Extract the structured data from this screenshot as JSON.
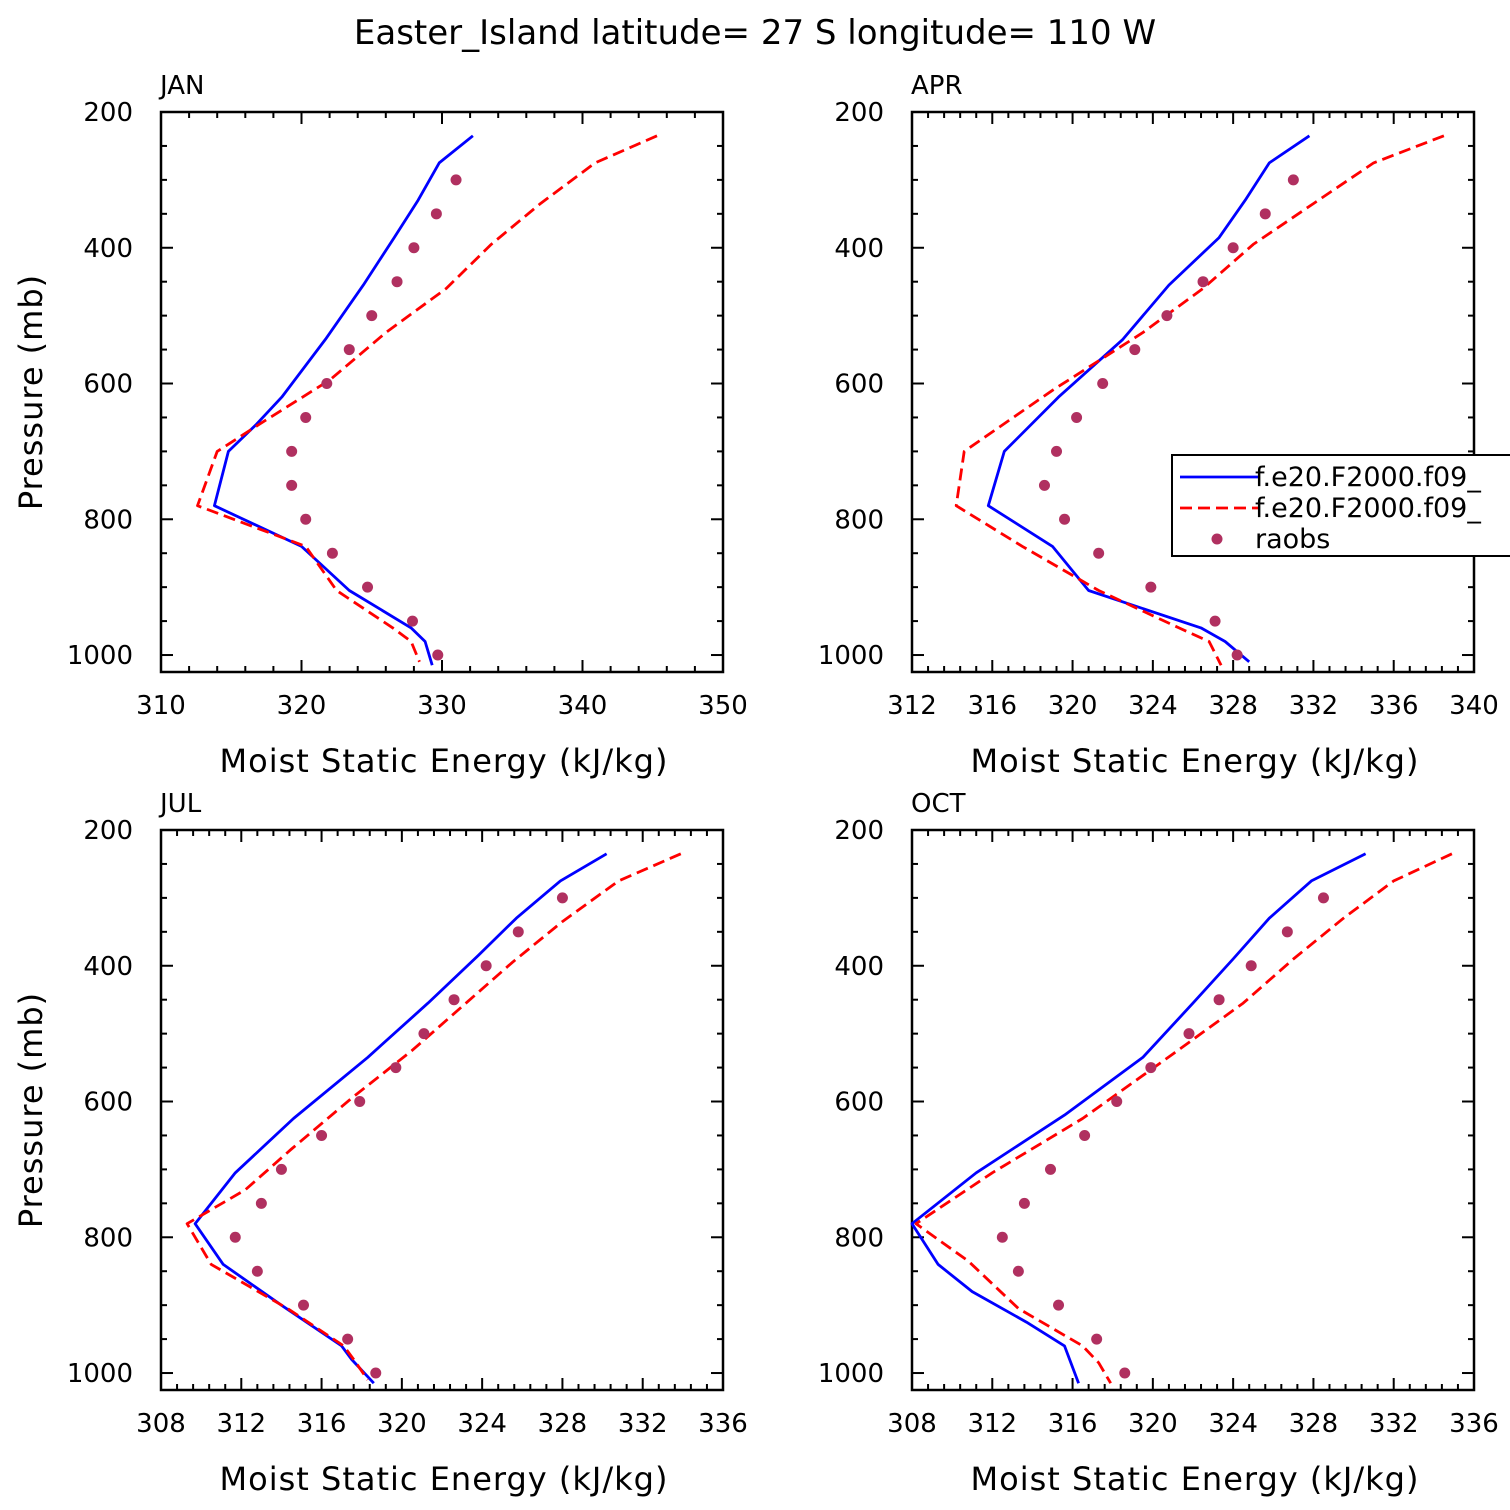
{
  "figure": {
    "title": "Easter_Island  latitude= 27 S longitude= 110 W"
  },
  "colors": {
    "model_a": "#0000ff",
    "model_b": "#ff0000",
    "raobs": "#b03060",
    "axis": "#000000",
    "background": "#ffffff"
  },
  "chart_data": [
    {
      "type": "line",
      "panel_label": "JAN",
      "xlabel": "Moist Static Energy (kJ/kg)",
      "ylabel": "Pressure (mb)",
      "xlim": [
        310,
        350
      ],
      "xticks": [
        "310",
        "320",
        "330",
        "340",
        "350"
      ],
      "ylim": [
        200,
        1025
      ],
      "y_inverted": true,
      "yticks": [
        "200",
        "400",
        "600",
        "800",
        "1000"
      ],
      "legend": null,
      "series": [
        {
          "name": "f.e20.F2000.f09_",
          "style": "solid",
          "p": [
            235,
            275,
            330,
            385,
            455,
            535,
            620,
            660,
            700,
            780,
            840,
            905,
            960,
            980,
            1015
          ],
          "x": [
            332.2,
            329.8,
            328.3,
            326.6,
            324.4,
            321.7,
            318.6,
            316.8,
            314.8,
            313.8,
            320.0,
            323.4,
            327.8,
            328.8,
            329.3
          ]
        },
        {
          "name": "f.e20.F2000.f09_",
          "style": "dashed",
          "p": [
            235,
            275,
            335,
            395,
            460,
            525,
            595,
            660,
            700,
            780,
            840,
            905,
            960,
            980,
            1010
          ],
          "x": [
            345.3,
            340.9,
            337.0,
            333.5,
            330.3,
            326.0,
            322.0,
            317.0,
            314.0,
            312.6,
            320.3,
            322.5,
            326.5,
            327.8,
            328.4
          ]
        },
        {
          "name": "raobs",
          "style": "markers",
          "p": [
            300,
            350,
            400,
            450,
            500,
            550,
            600,
            650,
            700,
            750,
            800,
            850,
            900,
            950,
            1000
          ],
          "x": [
            331.0,
            329.6,
            328.0,
            326.8,
            325.0,
            323.4,
            321.8,
            320.3,
            319.3,
            319.3,
            320.3,
            322.2,
            324.7,
            327.9,
            329.7
          ]
        }
      ]
    },
    {
      "type": "line",
      "panel_label": "APR",
      "xlabel": "Moist Static Energy (kJ/kg)",
      "ylabel": "",
      "xlim": [
        312,
        340
      ],
      "xticks": [
        "312",
        "316",
        "320",
        "324",
        "328",
        "332",
        "336",
        "340"
      ],
      "ylim": [
        200,
        1025
      ],
      "y_inverted": true,
      "yticks": [
        "200",
        "400",
        "600",
        "800",
        "1000"
      ],
      "legend": {
        "placement": "right-middle",
        "entries": [
          "f.e20.F2000.f09_",
          "f.e20.F2000.f09_",
          "raobs"
        ]
      },
      "series": [
        {
          "name": "f.e20.F2000.f09_",
          "style": "solid",
          "p": [
            235,
            275,
            330,
            385,
            455,
            535,
            620,
            700,
            780,
            840,
            905,
            960,
            980,
            1010
          ],
          "x": [
            331.8,
            329.8,
            328.6,
            327.3,
            324.8,
            322.5,
            319.3,
            316.6,
            315.8,
            319.0,
            320.8,
            326.4,
            327.6,
            328.8
          ]
        },
        {
          "name": "f.e20.F2000.f09_",
          "style": "dashed",
          "p": [
            235,
            275,
            335,
            395,
            460,
            525,
            610,
            700,
            780,
            840,
            905,
            960,
            980,
            1015
          ],
          "x": [
            338.5,
            335.0,
            332.0,
            329.0,
            326.5,
            323.5,
            319.0,
            314.6,
            314.2,
            317.5,
            321.3,
            325.3,
            326.8,
            327.4
          ]
        },
        {
          "name": "raobs",
          "style": "markers",
          "p": [
            300,
            350,
            400,
            450,
            500,
            550,
            600,
            650,
            700,
            750,
            800,
            850,
            900,
            950,
            1000
          ],
          "x": [
            331.0,
            329.6,
            328.0,
            326.5,
            324.7,
            323.1,
            321.5,
            320.2,
            319.2,
            318.6,
            319.6,
            321.3,
            323.9,
            327.1,
            328.2
          ]
        }
      ]
    },
    {
      "type": "line",
      "panel_label": "JUL",
      "xlabel": "Moist Static Energy (kJ/kg)",
      "ylabel": "Pressure (mb)",
      "xlim": [
        308,
        336
      ],
      "xticks": [
        "308",
        "312",
        "316",
        "320",
        "324",
        "328",
        "332",
        "336"
      ],
      "ylim": [
        200,
        1025
      ],
      "y_inverted": true,
      "yticks": [
        "200",
        "400",
        "600",
        "800",
        "1000"
      ],
      "legend": null,
      "series": [
        {
          "name": "f.e20.F2000.f09_",
          "style": "solid",
          "p": [
            235,
            275,
            330,
            385,
            455,
            535,
            625,
            705,
            780,
            840,
            900,
            960,
            980,
            1015
          ],
          "x": [
            330.2,
            327.9,
            325.7,
            323.8,
            321.3,
            318.3,
            314.6,
            311.7,
            309.7,
            311.1,
            314.0,
            317.0,
            317.5,
            318.6
          ]
        },
        {
          "name": "f.e20.F2000.f09_",
          "style": "dashed",
          "p": [
            235,
            275,
            335,
            395,
            460,
            525,
            595,
            670,
            730,
            780,
            840,
            905,
            960,
            980,
            1010
          ],
          "x": [
            333.9,
            330.8,
            328.0,
            325.5,
            323.0,
            320.5,
            317.5,
            314.5,
            312.2,
            309.3,
            310.5,
            314.3,
            317.1,
            317.6,
            318.3
          ]
        },
        {
          "name": "raobs",
          "style": "markers",
          "p": [
            300,
            350,
            400,
            450,
            500,
            550,
            600,
            650,
            700,
            750,
            800,
            850,
            900,
            950,
            1000
          ],
          "x": [
            328.0,
            325.8,
            324.2,
            322.6,
            321.1,
            319.7,
            317.9,
            316.0,
            314.0,
            313.0,
            311.7,
            312.8,
            315.1,
            317.3,
            318.7
          ]
        }
      ]
    },
    {
      "type": "line",
      "panel_label": "OCT",
      "xlabel": "Moist Static Energy (kJ/kg)",
      "ylabel": "",
      "xlim": [
        308,
        336
      ],
      "xticks": [
        "308",
        "312",
        "316",
        "320",
        "324",
        "328",
        "332",
        "336"
      ],
      "ylim": [
        200,
        1025
      ],
      "y_inverted": true,
      "yticks": [
        "200",
        "400",
        "600",
        "800",
        "1000"
      ],
      "legend": null,
      "series": [
        {
          "name": "f.e20.F2000.f09_",
          "style": "solid",
          "p": [
            235,
            275,
            330,
            390,
            455,
            535,
            620,
            705,
            780,
            840,
            880,
            925,
            960,
            1015
          ],
          "x": [
            330.6,
            327.9,
            325.8,
            324.0,
            322.0,
            319.5,
            315.6,
            311.2,
            308.0,
            309.3,
            311.0,
            313.7,
            315.6,
            316.3
          ]
        },
        {
          "name": "f.e20.F2000.f09_",
          "style": "dashed",
          "p": [
            235,
            275,
            330,
            390,
            455,
            530,
            625,
            705,
            780,
            835,
            905,
            960,
            985,
            1015
          ],
          "x": [
            334.9,
            332.0,
            329.5,
            327.0,
            324.5,
            321.0,
            316.5,
            312.0,
            308.2,
            310.8,
            313.3,
            316.5,
            317.3,
            317.9
          ]
        },
        {
          "name": "raobs",
          "style": "markers",
          "p": [
            300,
            350,
            400,
            450,
            500,
            550,
            600,
            650,
            700,
            750,
            800,
            850,
            900,
            950,
            1000
          ],
          "x": [
            328.5,
            326.7,
            324.9,
            323.3,
            321.8,
            319.9,
            318.2,
            316.6,
            314.9,
            313.6,
            312.5,
            313.3,
            315.3,
            317.2,
            318.6
          ]
        }
      ]
    }
  ]
}
